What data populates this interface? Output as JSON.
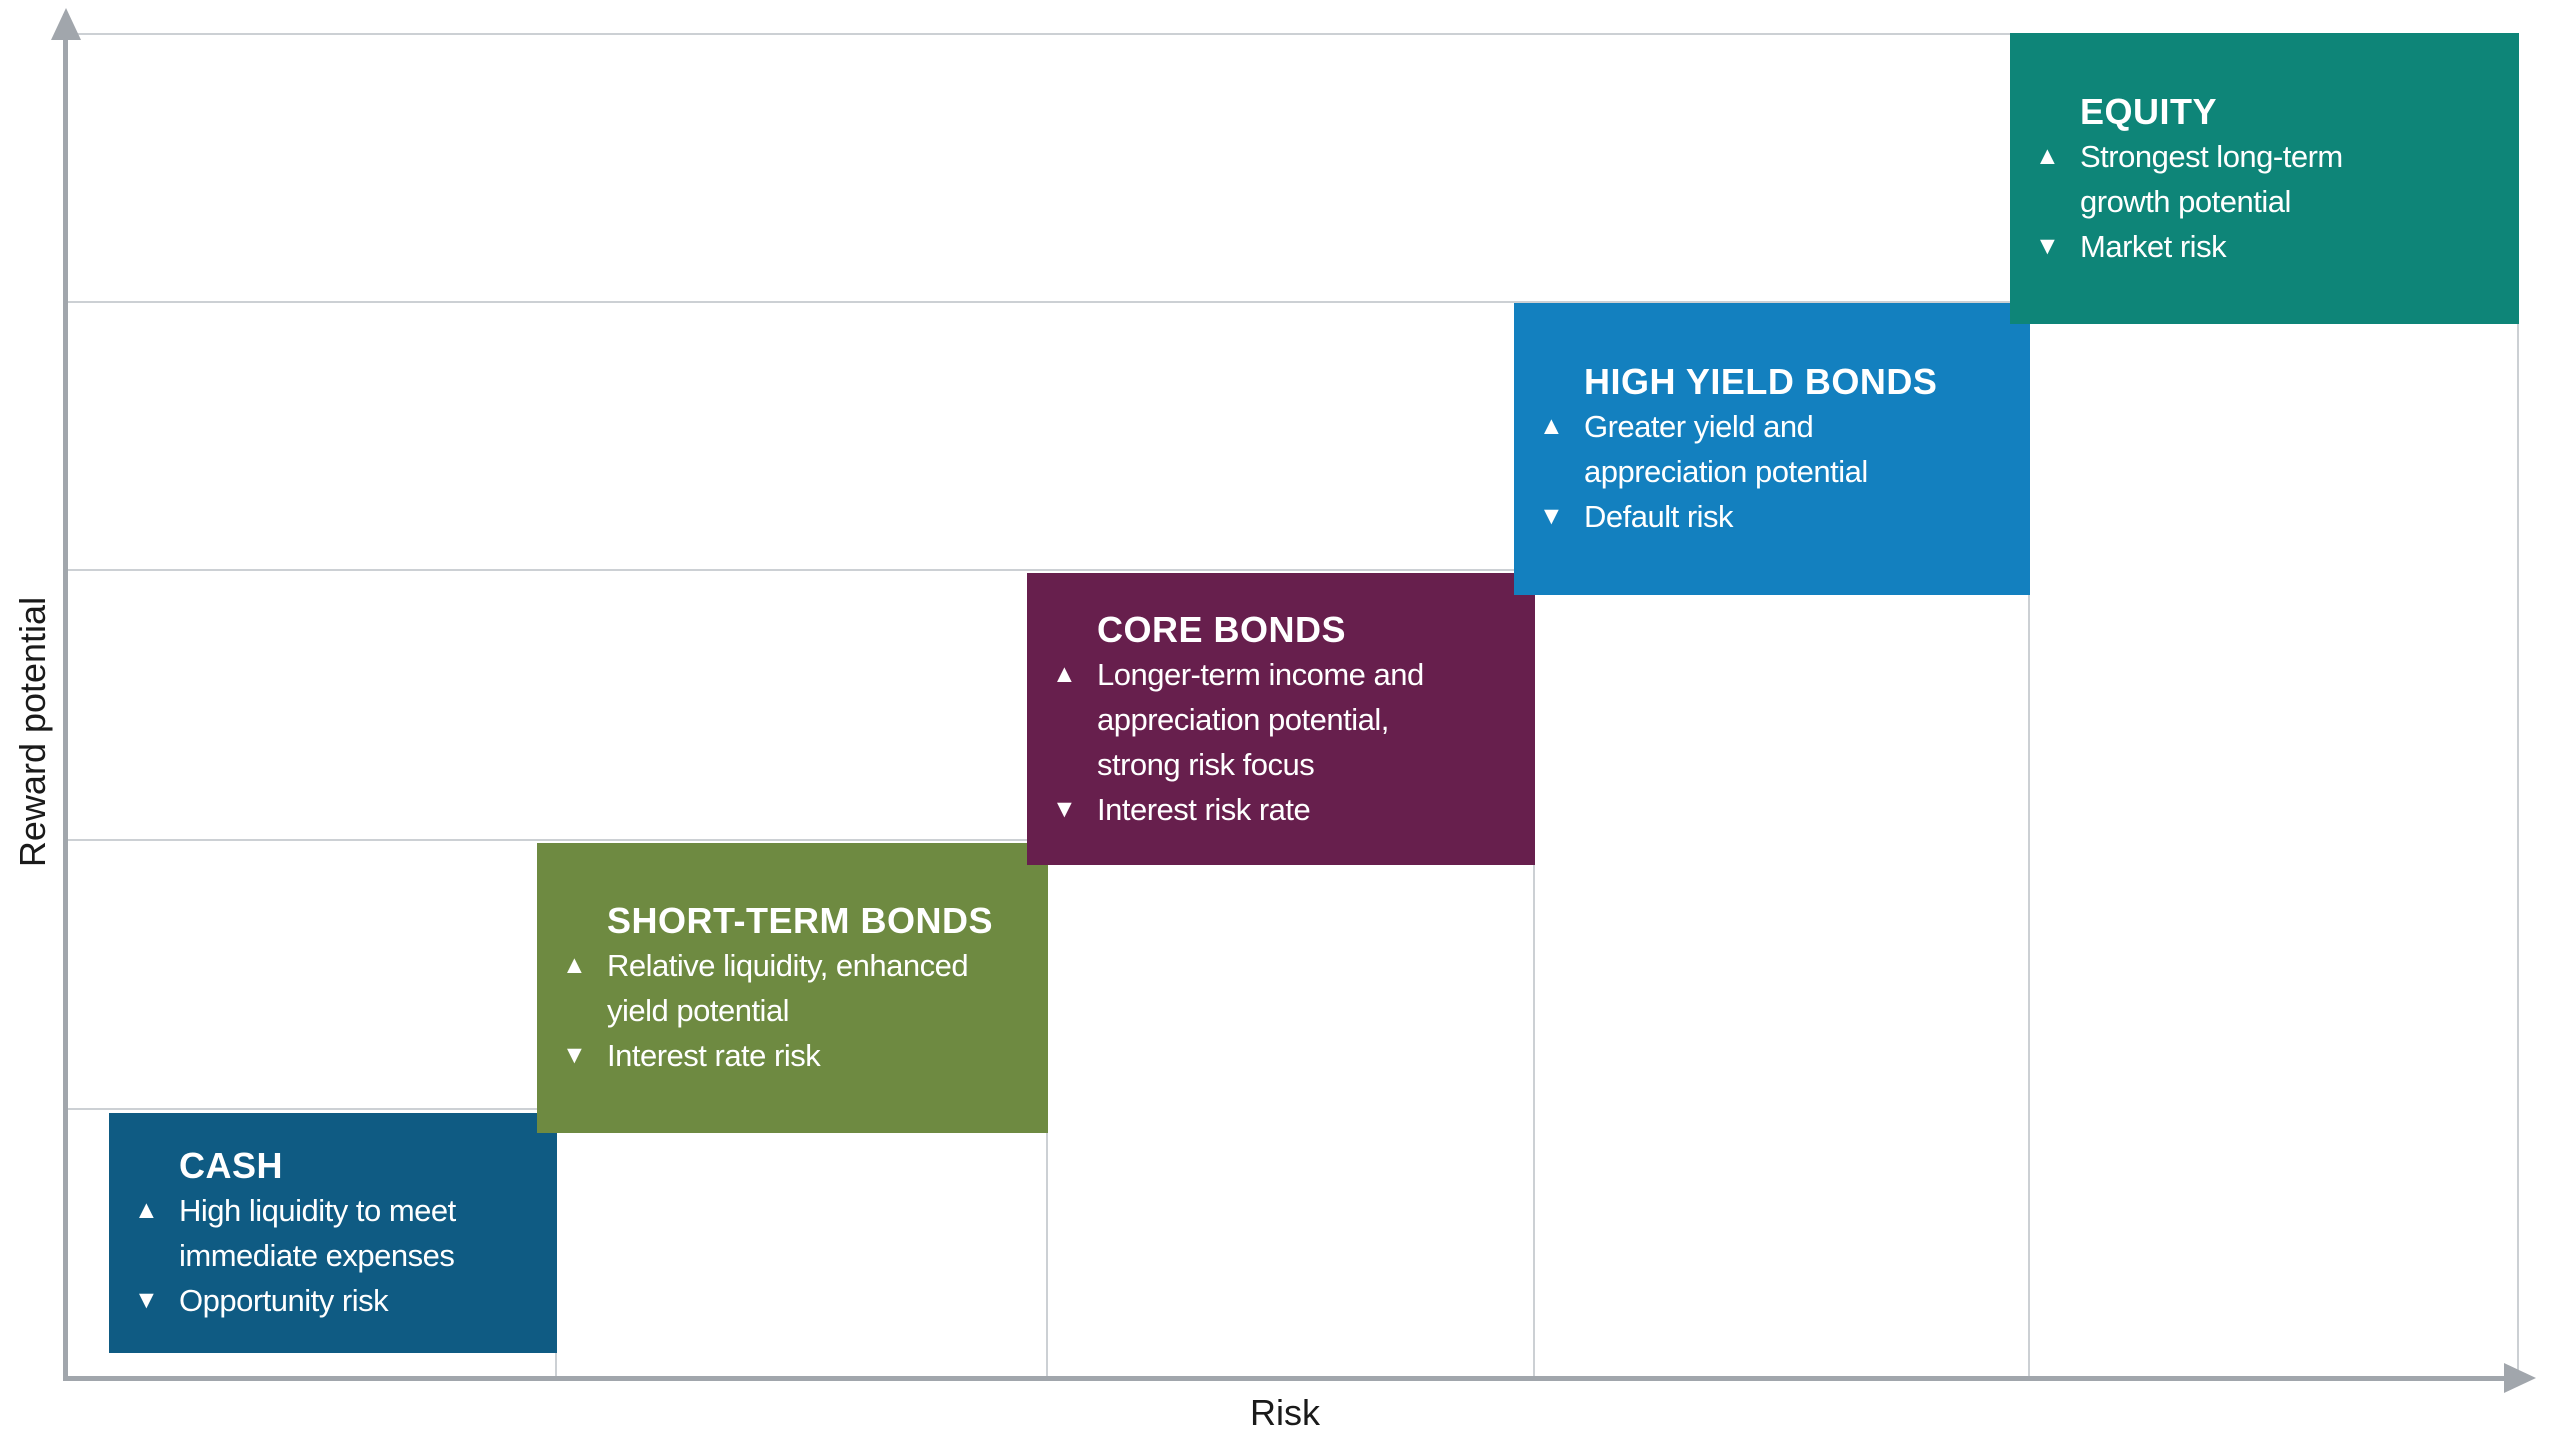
{
  "figure": {
    "type": "risk-reward-step-diagram",
    "x_axis_label": "Risk",
    "y_axis_label": "Reward potential",
    "icons": {
      "up": "▲",
      "down": "▼"
    },
    "colors": {
      "axis": "#A1A6AC",
      "gridline": "#CCD0D4",
      "axis_label_text": "#1A1A1A",
      "box_text": "#FFFFFF"
    },
    "steps": [
      {
        "title": "CASH",
        "color": "#0F5B83",
        "pro": "High liquidity to meet\nimmediate expenses",
        "con": "Opportunity risk"
      },
      {
        "title": "SHORT-TERM BONDS",
        "color": "#6E8A41",
        "pro": "Relative liquidity, enhanced\nyield potential",
        "con": "Interest rate risk"
      },
      {
        "title": "CORE BONDS",
        "color": "#671F4D",
        "pro": "Longer-term income and\nappreciation potential,\nstrong risk focus",
        "con": "Interest risk rate"
      },
      {
        "title": "HIGH YIELD BONDS",
        "color": "#1380BF",
        "pro": "Greater yield and\nappreciation potential",
        "con": "Default risk"
      },
      {
        "title": "EQUITY",
        "color": "#0E8578",
        "pro": "Strongest long-term\ngrowth potential",
        "con": "Market risk"
      }
    ]
  }
}
